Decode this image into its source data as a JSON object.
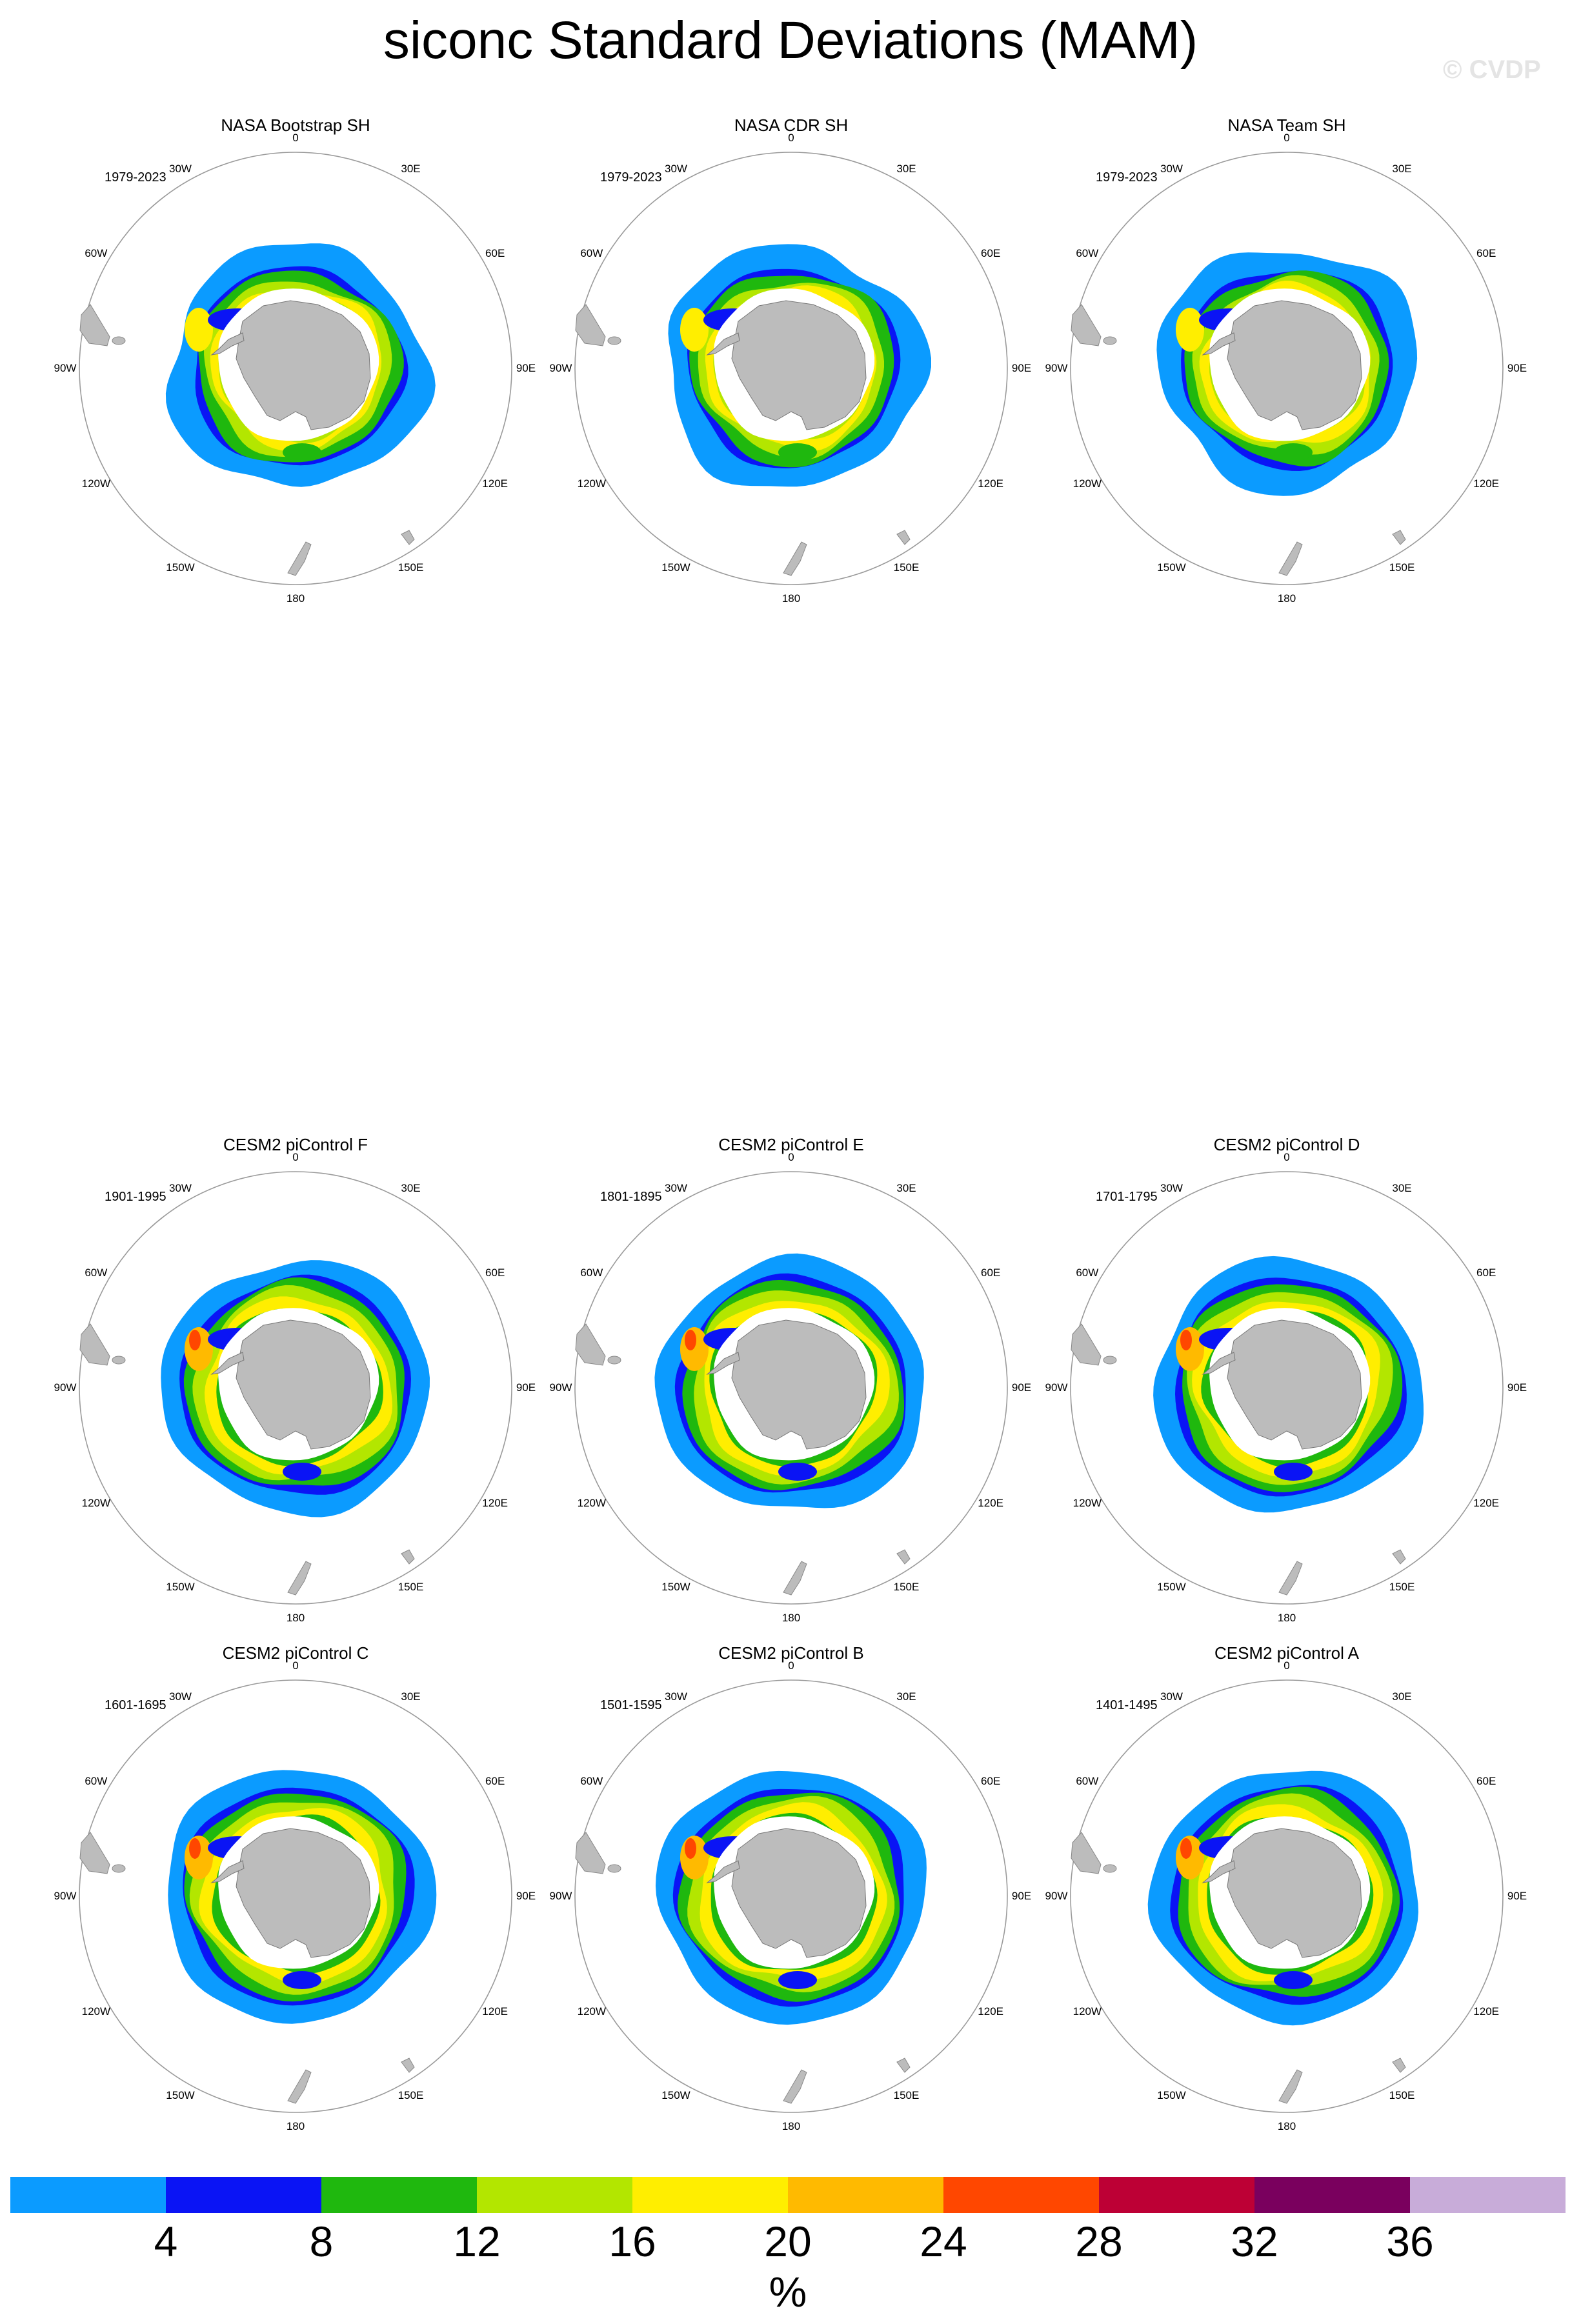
{
  "title": "siconc Standard Deviations (MAM)",
  "watermark": "© CVDP",
  "units": "%",
  "colorbar": {
    "levels": [
      "4",
      "8",
      "12",
      "16",
      "20",
      "24",
      "28",
      "32",
      "36"
    ],
    "colors": [
      "#0b9bff",
      "#0a14f5",
      "#1fb80e",
      "#b3e600",
      "#ffee00",
      "#ffba00",
      "#ff4700",
      "#bd0035",
      "#7a005e",
      "#c8acd9"
    ]
  },
  "map_labels": {
    "lon_0": "0",
    "lon_30e": "30E",
    "lon_60e": "60E",
    "lon_90e": "90E",
    "lon_120e": "120E",
    "lon_150e": "150E",
    "lon_180": "180",
    "lon_150w": "150W",
    "lon_120w": "120W",
    "lon_90w": "90W",
    "lon_60w": "60W",
    "lon_30w": "30W"
  },
  "panels": [
    {
      "title": "NASA Bootstrap SH",
      "years": "1979-2023",
      "style": "obs"
    },
    {
      "title": "NASA CDR SH",
      "years": "1979-2023",
      "style": "obs"
    },
    {
      "title": "NASA Team SH",
      "years": "1979-2023",
      "style": "obs"
    },
    {
      "title": "CESM2 piControl F",
      "years": "1901-1995",
      "style": "model"
    },
    {
      "title": "CESM2 piControl E",
      "years": "1801-1895",
      "style": "model"
    },
    {
      "title": "CESM2 piControl D",
      "years": "1701-1795",
      "style": "model"
    },
    {
      "title": "CESM2 piControl C",
      "years": "1601-1695",
      "style": "model"
    },
    {
      "title": "CESM2 piControl B",
      "years": "1501-1595",
      "style": "model"
    },
    {
      "title": "CESM2 piControl A",
      "years": "1401-1495",
      "style": "model"
    }
  ]
}
